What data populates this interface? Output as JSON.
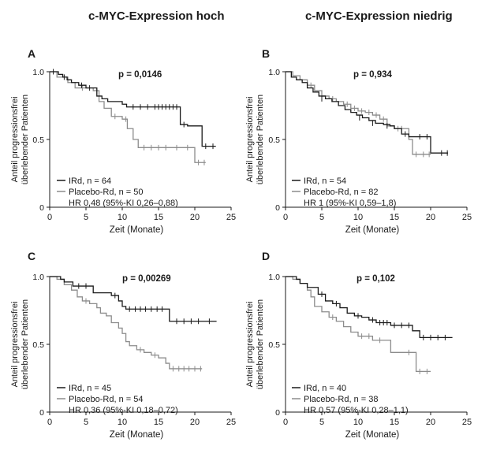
{
  "column_titles": [
    "c-MYC-Expression hoch",
    "c-MYC-Expression niedrig"
  ],
  "colors": {
    "ird": "#1a1a1a",
    "placebo": "#8c8c8c",
    "axis": "#1a1a1a"
  },
  "chart_data": [
    {
      "type": "line",
      "panel_label": "A",
      "p_value": "p = 0,0146",
      "xlabel": "Zeit (Monate)",
      "ylabel": [
        "Anteil progressionsfrei",
        "überlebender Patienten"
      ],
      "xlim": [
        0,
        25
      ],
      "ylim": [
        0,
        1.0
      ],
      "xticks": [
        0,
        5,
        10,
        15,
        20,
        25
      ],
      "yticks": [
        0,
        0.5,
        1.0
      ],
      "ytick_labels": [
        "0",
        "0.5",
        "1.0"
      ],
      "legend": [
        "IRd, n = 64",
        "Placebo-Rd, n = 50"
      ],
      "hr": "HR 0,48 (95%-KI 0,26–0,88)",
      "series": [
        {
          "name": "IRd, n = 64",
          "color": "#1a1a1a",
          "steps": [
            [
              0,
              1.0
            ],
            [
              1.2,
              0.98
            ],
            [
              1.8,
              0.96
            ],
            [
              2.4,
              0.94
            ],
            [
              3.0,
              0.92
            ],
            [
              4.0,
              0.9
            ],
            [
              5.0,
              0.88
            ],
            [
              6.5,
              0.82
            ],
            [
              7.2,
              0.8
            ],
            [
              8.0,
              0.78
            ],
            [
              10.0,
              0.76
            ],
            [
              10.6,
              0.74
            ],
            [
              18.0,
              0.61
            ],
            [
              19.0,
              0.6
            ],
            [
              21.0,
              0.45
            ],
            [
              22.9,
              0.45
            ]
          ],
          "censor": [
            [
              0.5,
              1.0
            ],
            [
              2.0,
              0.96
            ],
            [
              4.4,
              0.9
            ],
            [
              5.5,
              0.88
            ],
            [
              11.5,
              0.74
            ],
            [
              12.5,
              0.74
            ],
            [
              13.5,
              0.74
            ],
            [
              14.5,
              0.74
            ],
            [
              15.0,
              0.74
            ],
            [
              15.5,
              0.74
            ],
            [
              16.0,
              0.74
            ],
            [
              16.5,
              0.74
            ],
            [
              17.0,
              0.74
            ],
            [
              17.5,
              0.74
            ],
            [
              18.5,
              0.61
            ],
            [
              21.5,
              0.45
            ],
            [
              22.5,
              0.45
            ]
          ]
        },
        {
          "name": "Placebo-Rd, n = 50",
          "color": "#8c8c8c",
          "steps": [
            [
              0,
              1.0
            ],
            [
              1.0,
              0.96
            ],
            [
              2.5,
              0.92
            ],
            [
              3.5,
              0.88
            ],
            [
              6.0,
              0.86
            ],
            [
              6.8,
              0.78
            ],
            [
              7.5,
              0.73
            ],
            [
              8.5,
              0.67
            ],
            [
              10.0,
              0.65
            ],
            [
              10.7,
              0.58
            ],
            [
              11.5,
              0.5
            ],
            [
              12.2,
              0.44
            ],
            [
              20.0,
              0.33
            ],
            [
              21.5,
              0.33
            ]
          ],
          "censor": [
            [
              4.5,
              0.88
            ],
            [
              9.0,
              0.67
            ],
            [
              10.5,
              0.65
            ],
            [
              13.0,
              0.44
            ],
            [
              14.0,
              0.44
            ],
            [
              15.0,
              0.44
            ],
            [
              16.0,
              0.44
            ],
            [
              17.5,
              0.44
            ],
            [
              19.0,
              0.44
            ],
            [
              20.5,
              0.33
            ],
            [
              21.3,
              0.33
            ]
          ]
        }
      ]
    },
    {
      "type": "line",
      "panel_label": "B",
      "p_value": "p = 0,934",
      "xlabel": "Zeit (Monate)",
      "ylabel": [
        "Anteil progressionsfrei",
        "überlebender Patienten"
      ],
      "xlim": [
        0,
        25
      ],
      "ylim": [
        0,
        1.0
      ],
      "xticks": [
        0,
        5,
        10,
        15,
        20,
        25
      ],
      "yticks": [
        0,
        0.5,
        1.0
      ],
      "ytick_labels": [
        "0",
        "0.5",
        "1.0"
      ],
      "legend": [
        "IRd, n = 54",
        "Placebo-Rd, n = 82"
      ],
      "hr": "HR 1 (95%-KI 0,59–1,8)",
      "series": [
        {
          "name": "IRd, n = 54",
          "color": "#1a1a1a",
          "steps": [
            [
              0,
              1.0
            ],
            [
              0.8,
              0.96
            ],
            [
              1.5,
              0.94
            ],
            [
              2.3,
              0.92
            ],
            [
              3.0,
              0.88
            ],
            [
              3.8,
              0.85
            ],
            [
              4.6,
              0.82
            ],
            [
              5.5,
              0.8
            ],
            [
              6.4,
              0.78
            ],
            [
              7.3,
              0.75
            ],
            [
              8.2,
              0.72
            ],
            [
              9.0,
              0.7
            ],
            [
              9.8,
              0.68
            ],
            [
              10.6,
              0.66
            ],
            [
              11.5,
              0.64
            ],
            [
              12.4,
              0.62
            ],
            [
              13.5,
              0.61
            ],
            [
              14.4,
              0.6
            ],
            [
              15.0,
              0.58
            ],
            [
              16.0,
              0.54
            ],
            [
              17.0,
              0.52
            ],
            [
              20.0,
              0.4
            ],
            [
              22.4,
              0.4
            ]
          ],
          "censor": [
            [
              5.0,
              0.8
            ],
            [
              10.2,
              0.66
            ],
            [
              12.0,
              0.62
            ],
            [
              14.0,
              0.6
            ],
            [
              16.5,
              0.54
            ],
            [
              18.5,
              0.52
            ],
            [
              19.5,
              0.52
            ],
            [
              21.5,
              0.4
            ],
            [
              22.3,
              0.4
            ]
          ]
        },
        {
          "name": "Placebo-Rd, n = 82",
          "color": "#8c8c8c",
          "steps": [
            [
              0,
              1.0
            ],
            [
              1.0,
              0.97
            ],
            [
              2.0,
              0.94
            ],
            [
              3.0,
              0.9
            ],
            [
              4.0,
              0.86
            ],
            [
              5.0,
              0.82
            ],
            [
              6.0,
              0.8
            ],
            [
              7.0,
              0.78
            ],
            [
              8.0,
              0.76
            ],
            [
              9.0,
              0.73
            ],
            [
              10.0,
              0.71
            ],
            [
              11.0,
              0.7
            ],
            [
              12.0,
              0.68
            ],
            [
              13.0,
              0.65
            ],
            [
              14.0,
              0.6
            ],
            [
              15.0,
              0.58
            ],
            [
              17.0,
              0.5
            ],
            [
              17.5,
              0.39
            ],
            [
              20.0,
              0.39
            ]
          ],
          "censor": [
            [
              3.5,
              0.9
            ],
            [
              6.5,
              0.8
            ],
            [
              8.5,
              0.76
            ],
            [
              9.5,
              0.73
            ],
            [
              10.5,
              0.71
            ],
            [
              11.5,
              0.7
            ],
            [
              12.5,
              0.68
            ],
            [
              13.5,
              0.65
            ],
            [
              15.5,
              0.58
            ],
            [
              16.0,
              0.58
            ],
            [
              18.0,
              0.39
            ],
            [
              19.0,
              0.39
            ],
            [
              19.8,
              0.39
            ]
          ]
        }
      ]
    },
    {
      "type": "line",
      "panel_label": "C",
      "p_value": "p = 0,00269",
      "xlabel": "Zeit (Monate)",
      "ylabel": [
        "Anteil progressionsfrei",
        "überlebender Patienten"
      ],
      "xlim": [
        0,
        25
      ],
      "ylim": [
        0,
        1.0
      ],
      "xticks": [
        0,
        5,
        10,
        15,
        20,
        25
      ],
      "yticks": [
        0,
        0.5,
        1.0
      ],
      "ytick_labels": [
        "0",
        "0.5",
        "1.0"
      ],
      "legend": [
        "IRd, n = 45",
        "Placebo-Rd, n = 54"
      ],
      "hr": "HR 0,36 (95%-KI 0,18–0,72)",
      "series": [
        {
          "name": "IRd, n = 45",
          "color": "#1a1a1a",
          "steps": [
            [
              0,
              1.0
            ],
            [
              1.5,
              0.98
            ],
            [
              2.0,
              0.96
            ],
            [
              3.2,
              0.93
            ],
            [
              6.0,
              0.88
            ],
            [
              8.5,
              0.86
            ],
            [
              9.5,
              0.82
            ],
            [
              10.0,
              0.78
            ],
            [
              10.5,
              0.76
            ],
            [
              16.5,
              0.67
            ],
            [
              23.0,
              0.67
            ]
          ],
          "censor": [
            [
              4.0,
              0.93
            ],
            [
              5.0,
              0.93
            ],
            [
              9.0,
              0.86
            ],
            [
              11.0,
              0.76
            ],
            [
              11.8,
              0.76
            ],
            [
              12.5,
              0.76
            ],
            [
              13.2,
              0.76
            ],
            [
              14.0,
              0.76
            ],
            [
              14.8,
              0.76
            ],
            [
              15.5,
              0.76
            ],
            [
              17.5,
              0.67
            ],
            [
              18.5,
              0.67
            ],
            [
              19.5,
              0.67
            ],
            [
              20.5,
              0.67
            ],
            [
              22.0,
              0.67
            ]
          ]
        },
        {
          "name": "Placebo-Rd, n = 54",
          "color": "#8c8c8c",
          "steps": [
            [
              0,
              1.0
            ],
            [
              1.0,
              0.98
            ],
            [
              2.0,
              0.94
            ],
            [
              3.0,
              0.9
            ],
            [
              3.8,
              0.85
            ],
            [
              4.5,
              0.82
            ],
            [
              5.5,
              0.8
            ],
            [
              6.5,
              0.77
            ],
            [
              7.0,
              0.73
            ],
            [
              7.8,
              0.71
            ],
            [
              8.5,
              0.66
            ],
            [
              9.5,
              0.62
            ],
            [
              10.0,
              0.58
            ],
            [
              10.5,
              0.52
            ],
            [
              11.0,
              0.49
            ],
            [
              12.0,
              0.46
            ],
            [
              13.0,
              0.44
            ],
            [
              14.0,
              0.42
            ],
            [
              15.0,
              0.4
            ],
            [
              16.0,
              0.36
            ],
            [
              16.5,
              0.32
            ],
            [
              21.0,
              0.32
            ]
          ],
          "censor": [
            [
              5.0,
              0.82
            ],
            [
              12.5,
              0.46
            ],
            [
              14.5,
              0.42
            ],
            [
              17.0,
              0.32
            ],
            [
              17.8,
              0.32
            ],
            [
              18.5,
              0.32
            ],
            [
              19.2,
              0.32
            ],
            [
              20.0,
              0.32
            ],
            [
              20.8,
              0.32
            ]
          ]
        }
      ]
    },
    {
      "type": "line",
      "panel_label": "D",
      "p_value": "p = 0,102",
      "xlabel": "Zeit (Monate)",
      "ylabel": [
        "Anteil progressionsfrei",
        "überlebender Patienten"
      ],
      "xlim": [
        0,
        25
      ],
      "ylim": [
        0,
        1.0
      ],
      "xticks": [
        0,
        5,
        10,
        15,
        20,
        25
      ],
      "yticks": [
        0,
        0.5,
        1.0
      ],
      "ytick_labels": [
        "0",
        "0.5",
        "1.0"
      ],
      "legend": [
        "IRd, n = 40",
        "Placebo-Rd, n = 38"
      ],
      "hr": "HR 0,57 (95%-KI 0,28–1,1)",
      "series": [
        {
          "name": "IRd, n = 40",
          "color": "#1a1a1a",
          "steps": [
            [
              0,
              1.0
            ],
            [
              1.5,
              0.98
            ],
            [
              2.0,
              0.95
            ],
            [
              3.0,
              0.92
            ],
            [
              4.5,
              0.87
            ],
            [
              5.5,
              0.82
            ],
            [
              6.5,
              0.8
            ],
            [
              7.5,
              0.77
            ],
            [
              8.5,
              0.73
            ],
            [
              9.5,
              0.71
            ],
            [
              10.5,
              0.7
            ],
            [
              11.5,
              0.68
            ],
            [
              12.5,
              0.66
            ],
            [
              14.5,
              0.64
            ],
            [
              17.5,
              0.6
            ],
            [
              18.5,
              0.55
            ],
            [
              23.0,
              0.55
            ]
          ],
          "censor": [
            [
              5.0,
              0.87
            ],
            [
              7.0,
              0.8
            ],
            [
              10.0,
              0.71
            ],
            [
              12.0,
              0.68
            ],
            [
              13.0,
              0.66
            ],
            [
              13.5,
              0.66
            ],
            [
              14.0,
              0.66
            ],
            [
              15.0,
              0.64
            ],
            [
              16.0,
              0.64
            ],
            [
              17.0,
              0.64
            ],
            [
              19.0,
              0.55
            ],
            [
              20.0,
              0.55
            ],
            [
              21.0,
              0.55
            ],
            [
              22.0,
              0.55
            ]
          ]
        },
        {
          "name": "Placebo-Rd, n = 38",
          "color": "#8c8c8c",
          "steps": [
            [
              0,
              1.0
            ],
            [
              1.0,
              0.98
            ],
            [
              2.0,
              0.95
            ],
            [
              3.0,
              0.9
            ],
            [
              3.5,
              0.85
            ],
            [
              4.0,
              0.78
            ],
            [
              5.0,
              0.74
            ],
            [
              6.0,
              0.7
            ],
            [
              7.0,
              0.67
            ],
            [
              8.0,
              0.63
            ],
            [
              9.0,
              0.59
            ],
            [
              10.0,
              0.56
            ],
            [
              12.0,
              0.53
            ],
            [
              14.5,
              0.44
            ],
            [
              18.0,
              0.3
            ],
            [
              20.0,
              0.3
            ]
          ],
          "censor": [
            [
              6.5,
              0.7
            ],
            [
              10.5,
              0.56
            ],
            [
              11.5,
              0.56
            ],
            [
              13.0,
              0.53
            ],
            [
              17.0,
              0.44
            ],
            [
              18.5,
              0.3
            ],
            [
              19.5,
              0.3
            ]
          ]
        }
      ]
    }
  ]
}
